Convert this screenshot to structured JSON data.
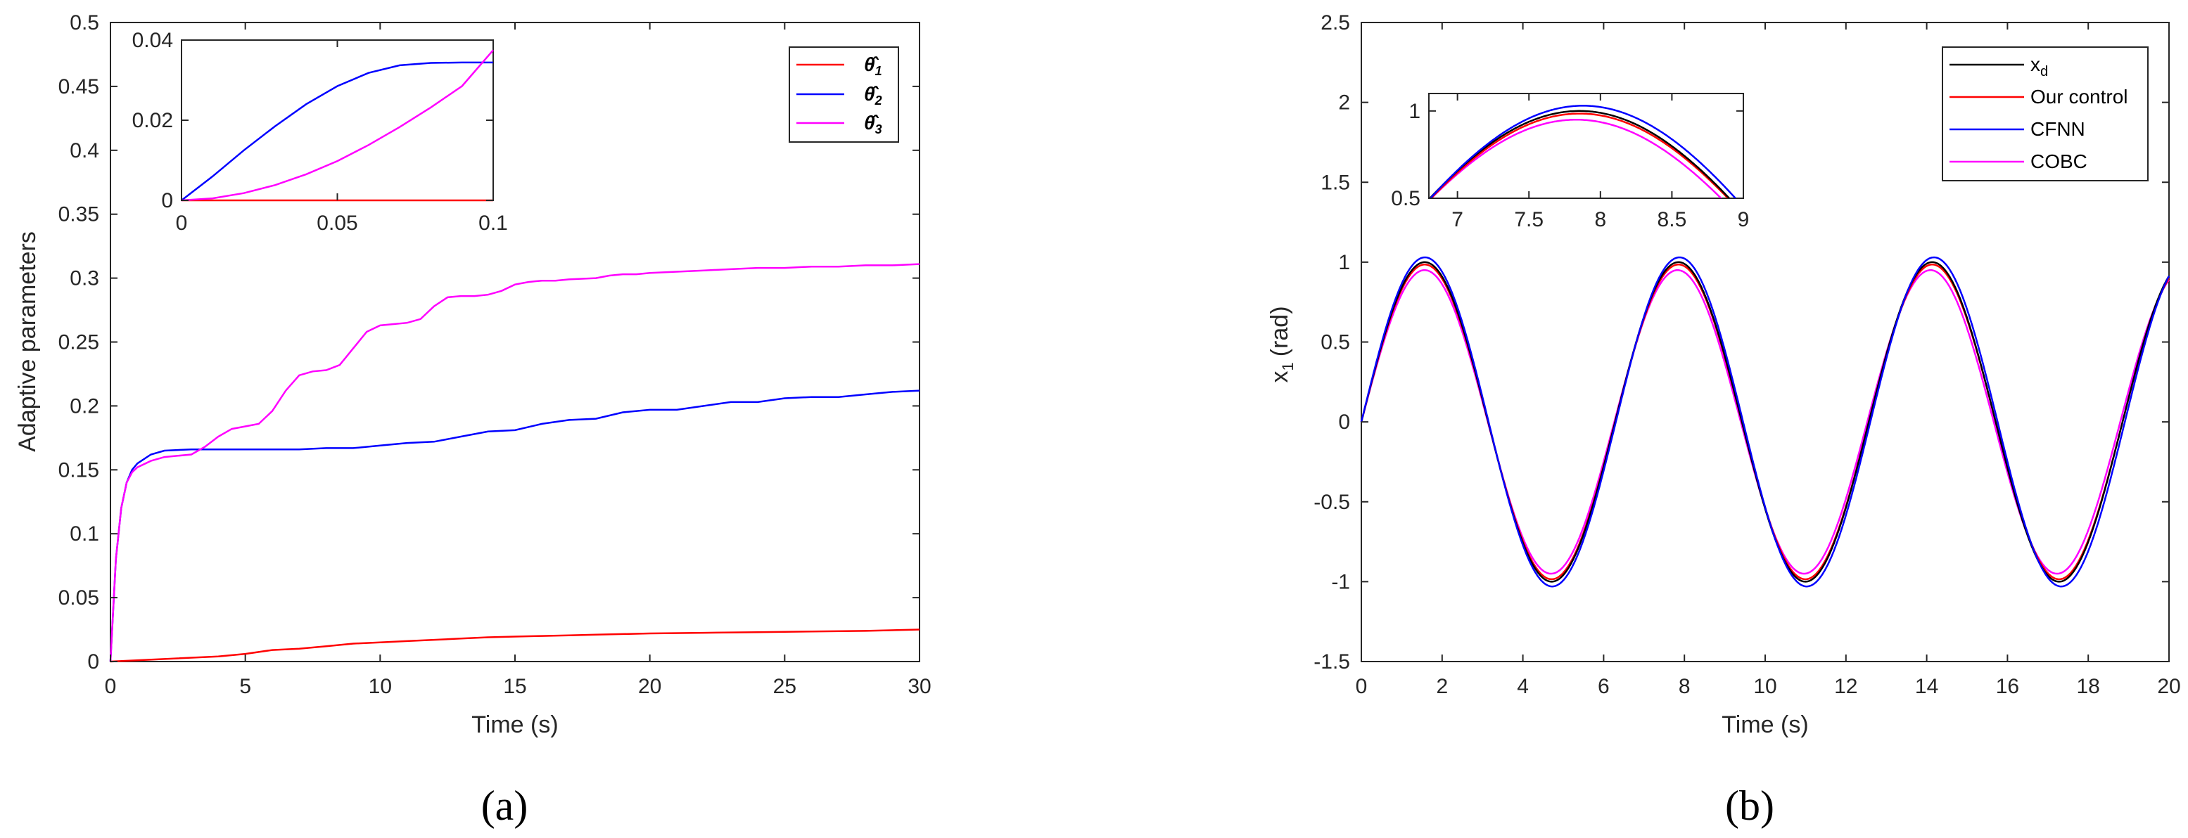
{
  "captions": [
    "(a)",
    "(b)"
  ],
  "chart_data": [
    {
      "type": "line",
      "panel": "(a)",
      "xlabel": "Time (s)",
      "ylabel": "Adaptive parameters",
      "xlim": [
        0,
        30
      ],
      "ylim": [
        0,
        0.5
      ],
      "xticks": [
        0,
        5,
        10,
        15,
        20,
        25,
        30
      ],
      "yticks": [
        0,
        0.05,
        0.1,
        0.15,
        0.2,
        0.25,
        0.3,
        0.35,
        0.4,
        0.45,
        0.5
      ],
      "grid": false,
      "legend_position": "top-right",
      "series": [
        {
          "name": "θ̂1",
          "color": "#ff0000",
          "x": [
            0,
            2,
            4,
            5,
            6,
            7,
            8,
            9,
            10,
            11,
            12,
            13,
            14,
            15,
            16,
            17,
            18,
            19,
            20,
            22,
            24,
            26,
            28,
            30
          ],
          "y": [
            0,
            0.002,
            0.004,
            0.006,
            0.009,
            0.01,
            0.012,
            0.014,
            0.015,
            0.016,
            0.017,
            0.018,
            0.019,
            0.0195,
            0.02,
            0.0205,
            0.021,
            0.0215,
            0.022,
            0.0225,
            0.023,
            0.0235,
            0.024,
            0.025
          ]
        },
        {
          "name": "θ̂2",
          "color": "#0000ff",
          "x": [
            0,
            0.2,
            0.4,
            0.6,
            0.8,
            1,
            1.5,
            2,
            3,
            5,
            7,
            8,
            9,
            10,
            11,
            12,
            13,
            14,
            15,
            16,
            17,
            18,
            19,
            20,
            21,
            22,
            23,
            24,
            25,
            26,
            27,
            28,
            29,
            30
          ],
          "y": [
            0,
            0.08,
            0.12,
            0.14,
            0.15,
            0.155,
            0.162,
            0.165,
            0.166,
            0.166,
            0.166,
            0.167,
            0.167,
            0.169,
            0.171,
            0.172,
            0.176,
            0.18,
            0.181,
            0.186,
            0.189,
            0.19,
            0.195,
            0.197,
            0.197,
            0.2,
            0.203,
            0.203,
            0.206,
            0.207,
            0.207,
            0.209,
            0.211,
            0.212
          ]
        },
        {
          "name": "θ̂3",
          "color": "#ff00ff",
          "x": [
            0,
            0.2,
            0.4,
            0.6,
            0.8,
            1,
            1.5,
            2,
            2.5,
            3,
            3.5,
            4,
            4.5,
            5,
            5.5,
            6,
            6.5,
            7,
            7.5,
            8,
            8.5,
            9,
            9.5,
            10,
            10.5,
            11,
            11.5,
            12,
            12.5,
            13,
            13.5,
            14,
            14.5,
            15,
            15.5,
            16,
            16.5,
            17,
            18,
            18.5,
            19,
            19.5,
            20,
            21,
            22,
            23,
            24,
            25,
            26,
            27,
            28,
            29,
            30
          ],
          "y": [
            0,
            0.08,
            0.12,
            0.14,
            0.148,
            0.152,
            0.157,
            0.16,
            0.161,
            0.162,
            0.168,
            0.176,
            0.182,
            0.184,
            0.186,
            0.196,
            0.212,
            0.224,
            0.227,
            0.228,
            0.232,
            0.245,
            0.258,
            0.263,
            0.264,
            0.265,
            0.268,
            0.278,
            0.285,
            0.286,
            0.286,
            0.287,
            0.29,
            0.295,
            0.297,
            0.298,
            0.298,
            0.299,
            0.3,
            0.302,
            0.303,
            0.303,
            0.304,
            0.305,
            0.306,
            0.307,
            0.308,
            0.308,
            0.309,
            0.309,
            0.31,
            0.31,
            0.311
          ]
        }
      ],
      "inset": {
        "xlim": [
          0,
          0.1
        ],
        "ylim": [
          0,
          0.04
        ],
        "xticks": [
          0,
          0.05,
          0.1
        ],
        "yticks": [
          0,
          0.02,
          0.04
        ],
        "series": [
          {
            "color": "#ff0000",
            "x": [
              0,
              0.1
            ],
            "y": [
              0,
              0
            ]
          },
          {
            "color": "#0000ff",
            "x": [
              0,
              0.01,
              0.02,
              0.03,
              0.04,
              0.05,
              0.06,
              0.07,
              0.08,
              0.09,
              0.1
            ],
            "y": [
              0,
              0.006,
              0.0125,
              0.0185,
              0.024,
              0.0285,
              0.0318,
              0.0337,
              0.0343,
              0.0344,
              0.0344
            ]
          },
          {
            "color": "#ff00ff",
            "x": [
              0,
              0.01,
              0.02,
              0.03,
              0.04,
              0.05,
              0.06,
              0.07,
              0.08,
              0.09,
              0.1
            ],
            "y": [
              0,
              0.0005,
              0.0018,
              0.0038,
              0.0065,
              0.0098,
              0.0138,
              0.0183,
              0.0232,
              0.0285,
              0.0375
            ]
          }
        ]
      }
    },
    {
      "type": "line",
      "panel": "(b)",
      "xlabel": "Time (s)",
      "ylabel": "x",
      "ylabel_sub": "1",
      "ylabel_unit": "(rad)",
      "xlim": [
        0,
        20
      ],
      "ylim": [
        -1.5,
        2.5
      ],
      "xticks": [
        0,
        2,
        4,
        6,
        8,
        10,
        12,
        14,
        16,
        18,
        20
      ],
      "yticks": [
        -1.5,
        -1,
        -0.5,
        0,
        0.5,
        1,
        1.5,
        2,
        2.5
      ],
      "grid": false,
      "legend_position": "top-right",
      "series": [
        {
          "name": "x",
          "name_sub": "d",
          "color": "#000000",
          "function": "sin",
          "amplitude": 1.0,
          "omega": 1.0
        },
        {
          "name": "Our control",
          "color": "#ff0000",
          "function": "sin",
          "amplitude": 0.985,
          "omega": 1.0
        },
        {
          "name": "CFNN",
          "color": "#0000ff",
          "function": "sin",
          "amplitude": 1.03,
          "omega": 0.997
        },
        {
          "name": "COBC",
          "color": "#ff00ff",
          "function": "sin",
          "amplitude": 0.95,
          "omega": 1.003
        }
      ],
      "inset": {
        "xlim": [
          6.8,
          9
        ],
        "ylim": [
          0.5,
          1.1
        ],
        "xticks": [
          7,
          7.5,
          8,
          8.5,
          9
        ],
        "yticks": [
          0.5,
          1
        ]
      }
    }
  ]
}
